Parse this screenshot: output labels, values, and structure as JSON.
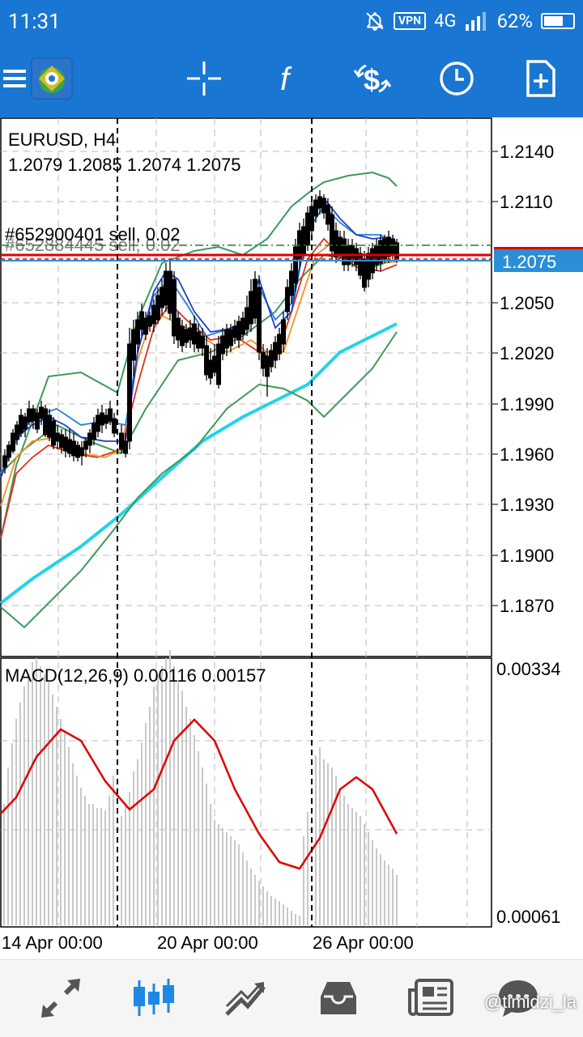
{
  "status": {
    "time": "11:31",
    "vpn": "VPN",
    "network": "4G",
    "battery": "62%"
  },
  "toolbar": {
    "icons": [
      "menu-icon",
      "mt-logo",
      "crosshair-icon",
      "indicators-icon",
      "symbol-icon",
      "period-icon",
      "new-order-icon"
    ]
  },
  "chart": {
    "symbol_title": "EURUSD, H4",
    "ohlc": "1.2079 1.2085 1.2074 1.2075",
    "order_label": "#652900401 sell, 0.02",
    "order_label2": "#652884445 sell, 0.02",
    "current_price": "1.2075",
    "price_ticks": [
      "1.2140",
      "1.2110",
      "1.2050",
      "1.2020",
      "1.1990",
      "1.1960",
      "1.1930",
      "1.1900",
      "1.1870"
    ],
    "macd_label": "MACD(12,26,9) 0.00116 0.00157",
    "macd_ticks": [
      "0.00334",
      "0.00061"
    ],
    "time_labels": [
      "14 Apr 00:00",
      "20 Apr 00:00",
      "26 Apr 00:00"
    ],
    "colors": {
      "up": "#ffffff",
      "down": "#000000",
      "bb": "#3c9a5a",
      "ma_fast": "#1e40c8",
      "ma_mid": "#2a7fd6",
      "ma_orange": "#ff8c1a",
      "ma_red": "#e0301e",
      "ma_slow": "#22d3e8",
      "macd_signal": "#e00000",
      "macd_hist": "#c8c8c8",
      "sell_line": "#e00000",
      "price_line": "#2a8fd6"
    }
  },
  "bottom_nav": {
    "icons": [
      "quotes-icon",
      "chart-icon",
      "trade-icon",
      "history-icon",
      "news-icon",
      "messages-icon"
    ],
    "watermark": "@timidzi_la"
  }
}
